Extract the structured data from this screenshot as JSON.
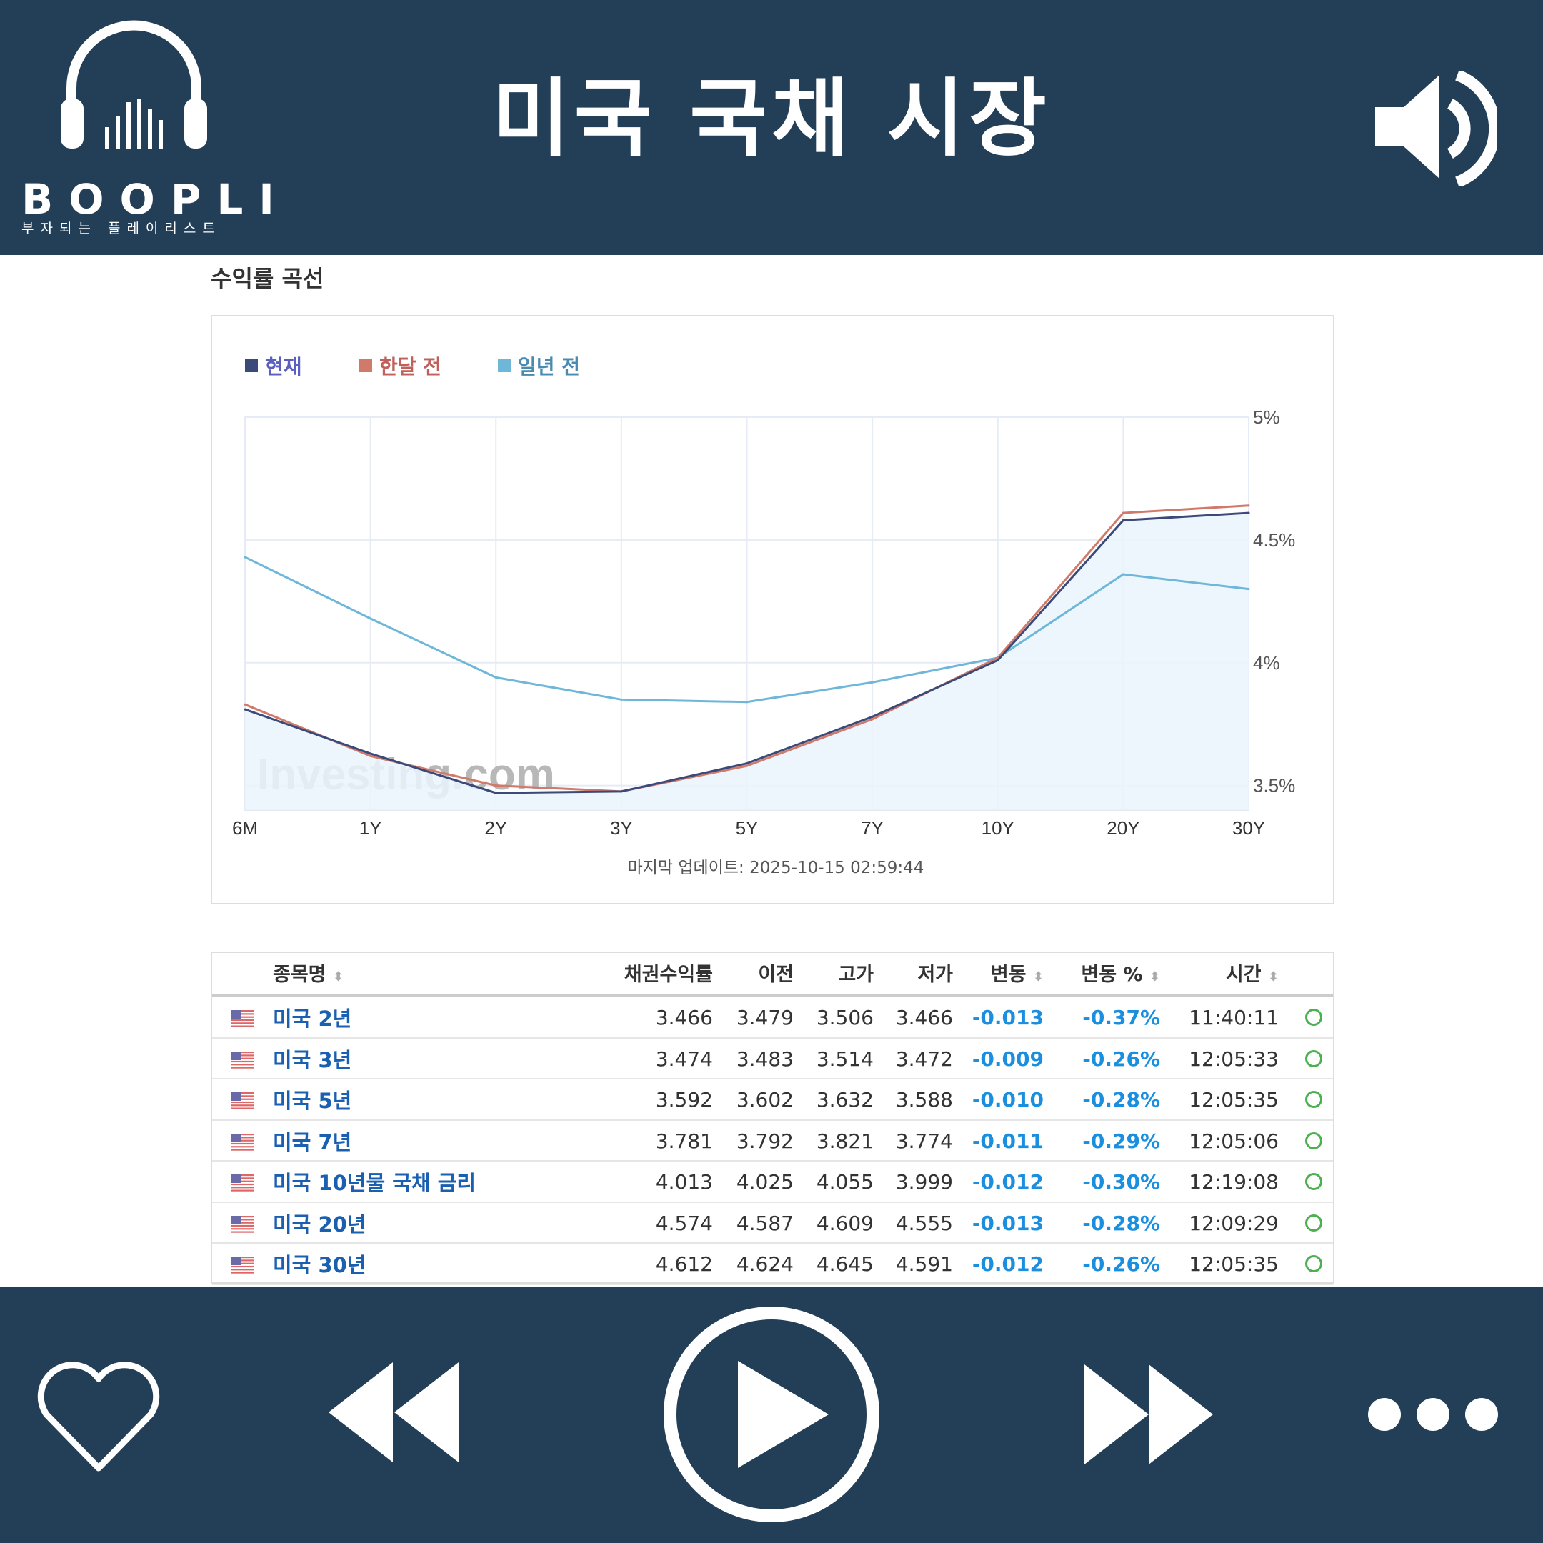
{
  "header": {
    "title": "미국 국채 시장",
    "brand": "BOOPLI",
    "brand_sub": "부자되는 플레이리스트",
    "logo_icon": "headphones-icon",
    "speaker_icon": "speaker-icon"
  },
  "section_title": "수익률 곡선",
  "chart_data": {
    "type": "line",
    "categories": [
      "6M",
      "1Y",
      "2Y",
      "3Y",
      "5Y",
      "7Y",
      "10Y",
      "20Y",
      "30Y"
    ],
    "series": [
      {
        "name": "현재",
        "color": "#3c4a7a",
        "values": [
          3.81,
          3.63,
          3.47,
          3.476,
          3.59,
          3.78,
          4.01,
          4.58,
          4.61
        ]
      },
      {
        "name": "한달 전",
        "color": "#d07a6a",
        "values": [
          3.83,
          3.62,
          3.5,
          3.476,
          3.58,
          3.77,
          4.02,
          4.61,
          4.64
        ]
      },
      {
        "name": "일년 전",
        "color": "#6fb7d8",
        "values": [
          4.43,
          4.18,
          3.94,
          3.85,
          3.84,
          3.92,
          4.02,
          4.36,
          4.3
        ]
      }
    ],
    "yticks": [
      "5%",
      "4.5%",
      "4%",
      "3.5%"
    ],
    "ytick_values": [
      5,
      4.5,
      4,
      3.5
    ],
    "ylim": [
      3.4,
      5
    ],
    "grid": true,
    "legend": "top-left",
    "watermark": "Investing.com",
    "update_text": "마지막 업데이트: 2025-10-15 02:59:44"
  },
  "table": {
    "headers": [
      "종목명",
      "채권수익률",
      "이전",
      "고가",
      "저가",
      "변동",
      "변동 %",
      "시간"
    ],
    "rows": [
      {
        "name": "미국 2년",
        "yield": "3.466",
        "prev": "3.479",
        "high": "3.506",
        "low": "3.466",
        "chg": "-0.013",
        "chg_pct": "-0.37%",
        "time": "11:40:11"
      },
      {
        "name": "미국 3년",
        "yield": "3.474",
        "prev": "3.483",
        "high": "3.514",
        "low": "3.472",
        "chg": "-0.009",
        "chg_pct": "-0.26%",
        "time": "12:05:33"
      },
      {
        "name": "미국 5년",
        "yield": "3.592",
        "prev": "3.602",
        "high": "3.632",
        "low": "3.588",
        "chg": "-0.010",
        "chg_pct": "-0.28%",
        "time": "12:05:35"
      },
      {
        "name": "미국 7년",
        "yield": "3.781",
        "prev": "3.792",
        "high": "3.821",
        "low": "3.774",
        "chg": "-0.011",
        "chg_pct": "-0.29%",
        "time": "12:05:06"
      },
      {
        "name": "미국 10년물 국채 금리",
        "yield": "4.013",
        "prev": "4.025",
        "high": "4.055",
        "low": "3.999",
        "chg": "-0.012",
        "chg_pct": "-0.30%",
        "time": "12:19:08"
      },
      {
        "name": "미국 20년",
        "yield": "4.574",
        "prev": "4.587",
        "high": "4.609",
        "low": "4.555",
        "chg": "-0.013",
        "chg_pct": "-0.28%",
        "time": "12:09:29"
      },
      {
        "name": "미국 30년",
        "yield": "4.612",
        "prev": "4.624",
        "high": "4.645",
        "low": "4.591",
        "chg": "-0.012",
        "chg_pct": "-0.26%",
        "time": "12:05:35"
      }
    ]
  },
  "controls": {
    "like": "heart-icon",
    "prev": "rewind-icon",
    "play": "play-icon",
    "next": "fast-forward-icon",
    "more": "more-icon"
  }
}
